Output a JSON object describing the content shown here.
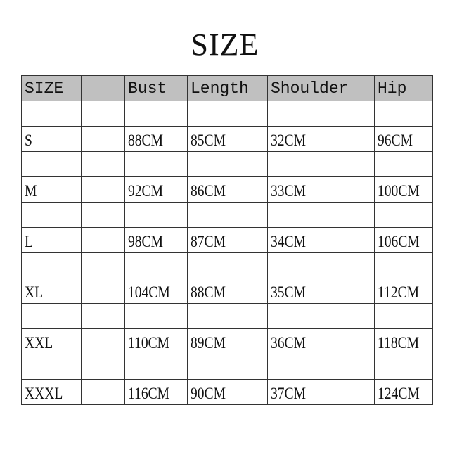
{
  "title": "SIZE",
  "table": {
    "headers": [
      "SIZE",
      "",
      "Bust",
      "Length",
      "Shoulder",
      "Hip"
    ],
    "rows": [
      [
        "S",
        "",
        "88CM",
        "85CM",
        "32CM",
        "96CM"
      ],
      [
        "M",
        "",
        "92CM",
        "86CM",
        "33CM",
        "100CM"
      ],
      [
        "L",
        "",
        "98CM",
        "87CM",
        "34CM",
        "106CM"
      ],
      [
        "XL",
        "",
        "104CM",
        "88CM",
        "35CM",
        "112CM"
      ],
      [
        "XXL",
        "",
        "110CM",
        "89CM",
        "36CM",
        "118CM"
      ],
      [
        "XXXL",
        "",
        "116CM",
        "90CM",
        "37CM",
        "124CM"
      ]
    ]
  },
  "colors": {
    "header_bg": "#c0c0c0",
    "border": "#333333"
  }
}
